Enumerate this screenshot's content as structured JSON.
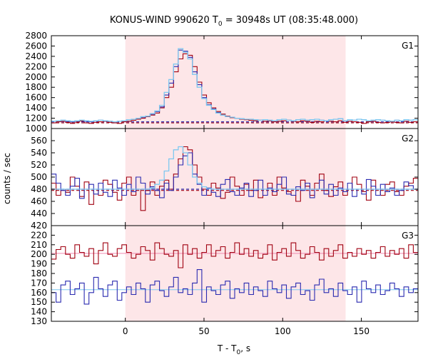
{
  "chart_data": {
    "type": "line",
    "title_main": "KONUS-WIND 990620 T",
    "title_sub": "0",
    "title_rest": " = 30948s UT (08:35:48.000)",
    "xlabel_main": "T - T",
    "xlabel_sub": "0",
    "xlabel_rest": ", s",
    "ylabel": "counts / sec",
    "xlim": [
      -47,
      186
    ],
    "xticks": [
      0,
      50,
      100,
      150
    ],
    "xtick_labels": [
      "0",
      "50",
      "100",
      "150"
    ],
    "shade": [
      0,
      140
    ],
    "colors": {
      "red": "#a00010",
      "blue": "#2a2ab0",
      "light_blue": "#7ec8f0",
      "pink_line": "#f08ab0",
      "shade": "#fde6e8"
    },
    "panels": [
      {
        "label": "G1",
        "ylim": [
          1000,
          2800
        ],
        "yticks": [
          1000,
          1200,
          1400,
          1600,
          1800,
          2000,
          2200,
          2400,
          2600,
          2800
        ],
        "ytick_labels": [
          "1000",
          "1200",
          "1400",
          "1600",
          "1800",
          "2000",
          "2200",
          "2400",
          "2600",
          "2800"
        ],
        "bg_level_red": 1110,
        "bg_level_blue": 1130,
        "series_red": [
          1110,
          1130,
          1140,
          1120,
          1100,
          1125,
          1145,
          1110,
          1100,
          1120,
          1130,
          1140,
          1120,
          1110,
          1100,
          1130,
          1140,
          1160,
          1180,
          1200,
          1230,
          1260,
          1300,
          1400,
          1600,
          1800,
          2100,
          2350,
          2450,
          2420,
          2200,
          1900,
          1650,
          1500,
          1400,
          1330,
          1280,
          1240,
          1210,
          1200,
          1180,
          1170,
          1160,
          1150,
          1160,
          1140,
          1150,
          1130,
          1140,
          1150,
          1160,
          1140,
          1130,
          1150,
          1140,
          1120,
          1140,
          1130,
          1150,
          1140,
          1130,
          1150,
          1120,
          1140,
          1130,
          1120,
          1100,
          1130,
          1140,
          1120,
          1110,
          1120,
          1130,
          1120,
          1110,
          1140,
          1120,
          1130
        ],
        "series_blue": [
          1140,
          1150,
          1160,
          1140,
          1130,
          1150,
          1160,
          1140,
          1130,
          1150,
          1160,
          1150,
          1140,
          1130,
          1140,
          1150,
          1170,
          1180,
          1200,
          1220,
          1240,
          1280,
          1330,
          1420,
          1650,
          1880,
          2200,
          2520,
          2500,
          2380,
          2100,
          1850,
          1600,
          1460,
          1380,
          1310,
          1260,
          1230,
          1220,
          1200,
          1190,
          1180,
          1180,
          1170,
          1160,
          1170,
          1160,
          1150,
          1170,
          1180,
          1160,
          1150,
          1170,
          1180,
          1160,
          1170,
          1180,
          1160,
          1150,
          1170,
          1180,
          1190,
          1150,
          1170,
          1160,
          1180,
          1170,
          1150,
          1160,
          1170,
          1160,
          1150,
          1140,
          1160,
          1150,
          1170,
          1160,
          1170
        ],
        "series_light": [
          1140,
          1150,
          1160,
          1150,
          1140,
          1150,
          1160,
          1150,
          1140,
          1150,
          1160,
          1150,
          1140,
          1130,
          1140,
          1150,
          1170,
          1180,
          1200,
          1230,
          1240,
          1290,
          1340,
          1450,
          1700,
          1950,
          2250,
          2550,
          2480,
          2350,
          2050,
          1800,
          1580,
          1450,
          1370,
          1300,
          1260,
          1230,
          1220,
          1200,
          1190,
          1180,
          1180,
          1170,
          1160,
          1170,
          1160,
          1150,
          1170,
          1180,
          1160,
          1150,
          1170,
          1180,
          1160,
          1170,
          1180,
          1160,
          1150,
          1170,
          1180,
          1190,
          1150,
          1170,
          1160,
          1180,
          1170,
          1150,
          1160,
          1170,
          1160,
          1150,
          1140,
          1160,
          1150,
          1170,
          1160,
          1170
        ]
      },
      {
        "label": "G2",
        "ylim": [
          420,
          580
        ],
        "yticks": [
          420,
          440,
          460,
          480,
          500,
          520,
          540,
          560
        ],
        "ytick_labels": [
          "420",
          "440",
          "460",
          "480",
          "500",
          "520",
          "540",
          "560"
        ],
        "bg_level_red": 478,
        "bg_level_blue": 480,
        "series_red": [
          490,
          470,
          480,
          475,
          500,
          485,
          468,
          492,
          455,
          480,
          470,
          495,
          488,
          475,
          462,
          490,
          500,
          470,
          480,
          445,
          478,
          492,
          470,
          485,
          495,
          480,
          505,
          530,
          550,
          545,
          520,
          500,
          480,
          470,
          490,
          482,
          465,
          475,
          500,
          485,
          470,
          488,
          478,
          495,
          466,
          480,
          490,
          470,
          500,
          482,
          476,
          470,
          460,
          495,
          485,
          470,
          490,
          505,
          478,
          468,
          484,
          492,
          470,
          480,
          500,
          488,
          476,
          462,
          495,
          480,
          470,
          488,
          492,
          476,
          470,
          485,
          490,
          498
        ],
        "series_blue": [
          505,
          490,
          478,
          470,
          485,
          498,
          465,
          480,
          488,
          472,
          490,
          475,
          468,
          495,
          482,
          470,
          488,
          476,
          500,
          490,
          472,
          484,
          478,
          466,
          490,
          478,
          500,
          520,
          535,
          540,
          505,
          488,
          470,
          482,
          475,
          468,
          488,
          496,
          476,
          470,
          482,
          490,
          468,
          478,
          495,
          470,
          482,
          476,
          488,
          500,
          472,
          470,
          484,
          478,
          490,
          466,
          480,
          495,
          472,
          488,
          470,
          482,
          476,
          490,
          468,
          480,
          472,
          496,
          485,
          470,
          488,
          476,
          482,
          470,
          478,
          492,
          486,
          480
        ],
        "series_light": [
          480,
          480,
          480,
          480,
          480,
          480,
          480,
          480,
          480,
          480,
          480,
          480,
          480,
          480,
          480,
          480,
          480,
          480,
          480,
          480,
          480,
          482,
          488,
          495,
          510,
          530,
          545,
          550,
          540,
          520,
          500,
          490,
          484,
          481,
          480,
          480,
          480,
          480,
          480,
          480,
          480,
          480,
          480,
          480,
          480,
          480,
          480,
          480,
          480,
          480,
          480,
          480,
          480,
          480,
          480,
          480,
          480,
          480,
          480,
          480,
          480,
          480,
          480,
          480,
          480,
          480,
          480,
          480,
          480,
          480,
          480,
          480,
          480,
          480,
          480,
          480,
          480,
          480
        ]
      },
      {
        "label": "G3",
        "ylim": [
          130,
          230
        ],
        "yticks": [
          130,
          140,
          150,
          160,
          170,
          180,
          190,
          200,
          210,
          220
        ],
        "ytick_labels": [
          "130",
          "140",
          "150",
          "160",
          "170",
          "180",
          "190",
          "200",
          "210",
          "220"
        ],
        "fit_red": 201,
        "fit_blue": 163,
        "series_red": [
          195,
          205,
          208,
          200,
          196,
          210,
          202,
          198,
          206,
          190,
          204,
          212,
          200,
          198,
          206,
          210,
          202,
          196,
          200,
          208,
          204,
          194,
          212,
          206,
          200,
          198,
          204,
          186,
          210,
          200,
          206,
          196,
          202,
          210,
          198,
          204,
          208,
          196,
          202,
          212,
          200,
          206,
          198,
          204,
          196,
          200,
          210,
          194,
          202,
          206,
          198,
          212,
          204,
          196,
          200,
          208,
          202,
          194,
          206,
          198,
          204,
          210,
          196,
          202,
          198,
          206,
          200,
          204,
          196,
          202,
          208,
          198,
          204,
          200,
          206,
          196,
          210,
          202
        ],
        "series_blue": [
          160,
          150,
          168,
          172,
          158,
          164,
          170,
          148,
          160,
          176,
          164,
          156,
          168,
          172,
          152,
          160,
          166,
          158,
          170,
          164,
          150,
          168,
          172,
          162,
          156,
          166,
          176,
          160,
          164,
          158,
          170,
          184,
          150,
          166,
          162,
          158,
          168,
          172,
          154,
          164,
          160,
          170,
          158,
          166,
          162,
          156,
          172,
          164,
          160,
          168,
          154,
          166,
          170,
          158,
          162,
          152,
          168,
          174,
          160,
          164,
          156,
          170,
          162,
          158,
          166,
          150,
          172,
          164,
          160,
          168,
          158,
          162,
          170,
          164,
          156,
          166,
          160,
          164
        ]
      }
    ]
  }
}
